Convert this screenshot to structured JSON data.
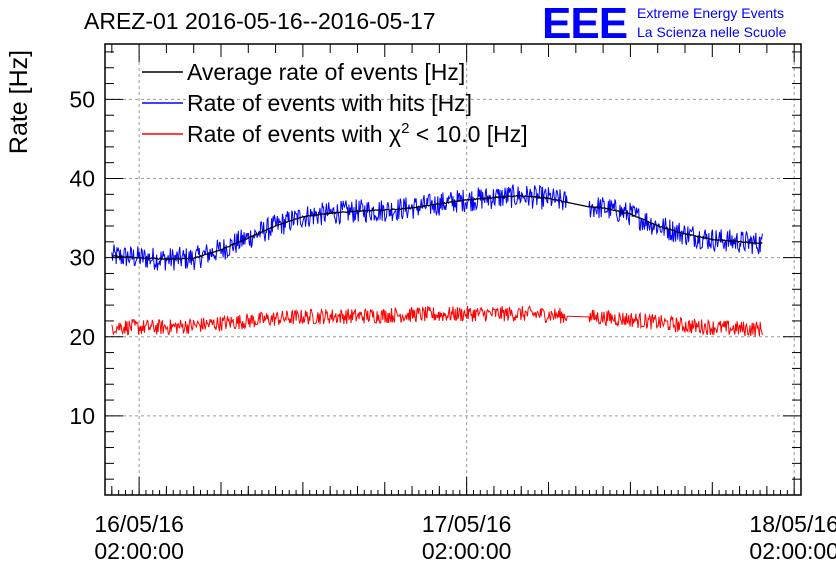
{
  "header": {
    "title": "AREZ-01 2016-05-16--2016-05-17"
  },
  "logo": {
    "mark": "EEE",
    "line1": "Extreme Energy Events",
    "line2": "La Scienza nelle Scuole",
    "color": "#0000ff"
  },
  "chart_data": {
    "type": "line",
    "title": "AREZ-01 2016-05-16--2016-05-17",
    "ylabel": "Rate [Hz]",
    "xlabel": "",
    "xlim": [
      "2016-05-15T23:30:00",
      "2016-05-18T02:30:00"
    ],
    "ylim": [
      0,
      57
    ],
    "grid": true,
    "legend_position": "top-left",
    "y_ticks": [
      10,
      20,
      30,
      40,
      50
    ],
    "x_ticks": [
      {
        "t": "2016-05-16T02:00:00",
        "date": "16/05/16",
        "time": "02:00:00"
      },
      {
        "t": "2016-05-17T02:00:00",
        "date": "17/05/16",
        "time": "02:00:00"
      },
      {
        "t": "2016-05-18T02:00:00",
        "date": "18/05/16",
        "time": "02:00:00"
      }
    ],
    "x_times": [
      "2016-05-15T22:00:00",
      "2016-05-16T00:00:00",
      "2016-05-16T02:00:00",
      "2016-05-16T04:00:00",
      "2016-05-16T06:00:00",
      "2016-05-16T08:00:00",
      "2016-05-16T10:00:00",
      "2016-05-16T12:00:00",
      "2016-05-16T14:00:00",
      "2016-05-16T16:00:00",
      "2016-05-16T18:00:00",
      "2016-05-16T20:00:00",
      "2016-05-16T22:00:00",
      "2016-05-17T00:00:00",
      "2016-05-17T02:00:00",
      "2016-05-17T04:00:00",
      "2016-05-17T06:00:00",
      "2016-05-17T08:00:00",
      "2016-05-17T10:00:00",
      "2016-05-17T12:00:00",
      "2016-05-17T14:00:00",
      "2016-05-17T16:00:00",
      "2016-05-17T18:00:00",
      "2016-05-17T20:00:00",
      "2016-05-17T22:00:00",
      "2016-05-18T00:00:00",
      "2016-05-18T02:00:00",
      "2016-05-18T04:00:00"
    ],
    "series": [
      {
        "name": "Average rate of events [Hz]",
        "color": "#000000",
        "x": [
          "2016-05-16T00:00:00",
          "2016-05-16T02:00:00",
          "2016-05-16T04:00:00",
          "2016-05-16T06:00:00",
          "2016-05-16T08:00:00",
          "2016-05-16T10:00:00",
          "2016-05-16T12:00:00",
          "2016-05-16T14:00:00",
          "2016-05-16T16:00:00",
          "2016-05-16T18:00:00",
          "2016-05-16T20:00:00",
          "2016-05-16T22:00:00",
          "2016-05-17T00:00:00",
          "2016-05-17T02:00:00",
          "2016-05-17T04:00:00",
          "2016-05-17T06:00:00",
          "2016-05-17T08:00:00",
          "2016-05-17T09:20:00",
          "2016-05-17T11:00:00",
          "2016-05-17T12:00:00",
          "2016-05-17T14:00:00",
          "2016-05-17T16:00:00",
          "2016-05-17T18:00:00",
          "2016-05-17T20:00:00",
          "2016-05-17T22:00:00",
          "2016-05-17T23:40:00"
        ],
        "y": [
          30.2,
          30.0,
          29.8,
          29.9,
          31.0,
          32.5,
          34.0,
          35.2,
          35.6,
          35.9,
          36.0,
          36.3,
          36.8,
          37.3,
          37.6,
          37.8,
          37.5,
          37.0,
          36.4,
          36.3,
          35.5,
          34.0,
          33.0,
          32.3,
          32.0,
          31.8
        ]
      },
      {
        "name": "Rate of events with hits [Hz]",
        "color": "#0000ff",
        "x": [
          "2016-05-16T00:00:00",
          "2016-05-16T02:00:00",
          "2016-05-16T04:00:00",
          "2016-05-16T06:00:00",
          "2016-05-16T08:00:00",
          "2016-05-16T10:00:00",
          "2016-05-16T12:00:00",
          "2016-05-16T14:00:00",
          "2016-05-16T16:00:00",
          "2016-05-16T18:00:00",
          "2016-05-16T20:00:00",
          "2016-05-16T22:00:00",
          "2016-05-17T00:00:00",
          "2016-05-17T02:00:00",
          "2016-05-17T04:00:00",
          "2016-05-17T06:00:00",
          "2016-05-17T08:00:00",
          "2016-05-17T09:20:00",
          "2016-05-17T11:00:00",
          "2016-05-17T12:00:00",
          "2016-05-17T14:00:00",
          "2016-05-17T16:00:00",
          "2016-05-17T18:00:00",
          "2016-05-17T20:00:00",
          "2016-05-17T22:00:00",
          "2016-05-17T23:40:00"
        ],
        "y": [
          30.2,
          30.0,
          29.8,
          29.9,
          31.0,
          32.5,
          34.0,
          35.2,
          35.6,
          35.9,
          36.0,
          36.3,
          36.8,
          37.3,
          37.6,
          37.8,
          37.5,
          37.0,
          36.4,
          36.3,
          35.5,
          34.0,
          33.0,
          32.3,
          32.0,
          31.8
        ]
      },
      {
        "name": "Rate of events with χ² < 10.0 [Hz]",
        "color": "#ff0000",
        "x": [
          "2016-05-16T00:00:00",
          "2016-05-16T02:00:00",
          "2016-05-16T04:00:00",
          "2016-05-16T06:00:00",
          "2016-05-16T08:00:00",
          "2016-05-16T10:00:00",
          "2016-05-16T12:00:00",
          "2016-05-16T14:00:00",
          "2016-05-16T16:00:00",
          "2016-05-16T18:00:00",
          "2016-05-16T20:00:00",
          "2016-05-16T22:00:00",
          "2016-05-17T00:00:00",
          "2016-05-17T02:00:00",
          "2016-05-17T04:00:00",
          "2016-05-17T06:00:00",
          "2016-05-17T08:00:00",
          "2016-05-17T09:20:00",
          "2016-05-17T11:00:00",
          "2016-05-17T12:00:00",
          "2016-05-17T14:00:00",
          "2016-05-17T16:00:00",
          "2016-05-17T18:00:00",
          "2016-05-17T20:00:00",
          "2016-05-17T22:00:00",
          "2016-05-17T23:40:00"
        ],
        "y": [
          21.3,
          21.2,
          21.2,
          21.4,
          21.7,
          22.0,
          22.3,
          22.5,
          22.6,
          22.6,
          22.7,
          22.8,
          22.8,
          22.9,
          22.9,
          22.9,
          22.8,
          22.6,
          22.5,
          22.4,
          22.2,
          21.8,
          21.4,
          21.2,
          21.0,
          21.0
        ]
      }
    ],
    "legend": [
      {
        "text": "Average rate of events [Hz]",
        "color": "#000000"
      },
      {
        "text": "Rate of events with hits [Hz]",
        "color": "#0000ff"
      },
      {
        "prefix": "Rate of events with ",
        "sym": "χ",
        "sup": "2",
        "suffix": " < 10.0 [Hz]",
        "color": "#ff0000"
      }
    ]
  }
}
